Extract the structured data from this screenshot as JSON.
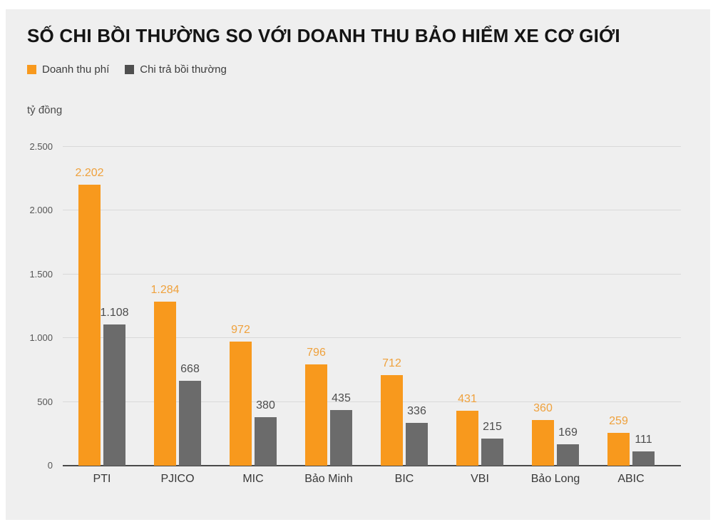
{
  "page": {
    "background": "#ffffff",
    "panel_background": "#efefef"
  },
  "chart_data": {
    "type": "bar",
    "title": "SỐ CHI BỒI THƯỜNG SO VỚI DOANH THU BẢO HIỂM XE CƠ GIỚI",
    "unit_label": "tỷ đồng",
    "legend_position": "top-left",
    "grid": true,
    "categories": [
      "PTI",
      "PJICO",
      "MIC",
      "Bảo Minh",
      "BIC",
      "VBI",
      "Bảo Long",
      "ABIC"
    ],
    "series": [
      {
        "name": "Doanh thu phí",
        "bar_color": "#f8991d",
        "swatch_color": "#f8991d",
        "value_label_color": "#efa13c",
        "values": [
          2202,
          1284,
          972,
          796,
          712,
          431,
          360,
          259
        ],
        "value_labels": [
          "2.202",
          "1.284",
          "972",
          "796",
          "712",
          "431",
          "360",
          "259"
        ]
      },
      {
        "name": "Chi trả bồi thường",
        "bar_color": "#6b6b6b",
        "swatch_color": "#4f4f4f",
        "value_label_color": "#4d4d4d",
        "values": [
          1108,
          668,
          380,
          435,
          336,
          215,
          169,
          111
        ],
        "value_labels": [
          "1.108",
          "668",
          "380",
          "435",
          "336",
          "215",
          "169",
          "111"
        ]
      }
    ],
    "ylim": [
      0,
      2500
    ],
    "yticks": [
      {
        "value": 0,
        "label": "0"
      },
      {
        "value": 500,
        "label": "500"
      },
      {
        "value": 1000,
        "label": "1.000"
      },
      {
        "value": 1500,
        "label": "1.500"
      },
      {
        "value": 2000,
        "label": "2.000"
      },
      {
        "value": 2500,
        "label": "2.500"
      }
    ]
  }
}
